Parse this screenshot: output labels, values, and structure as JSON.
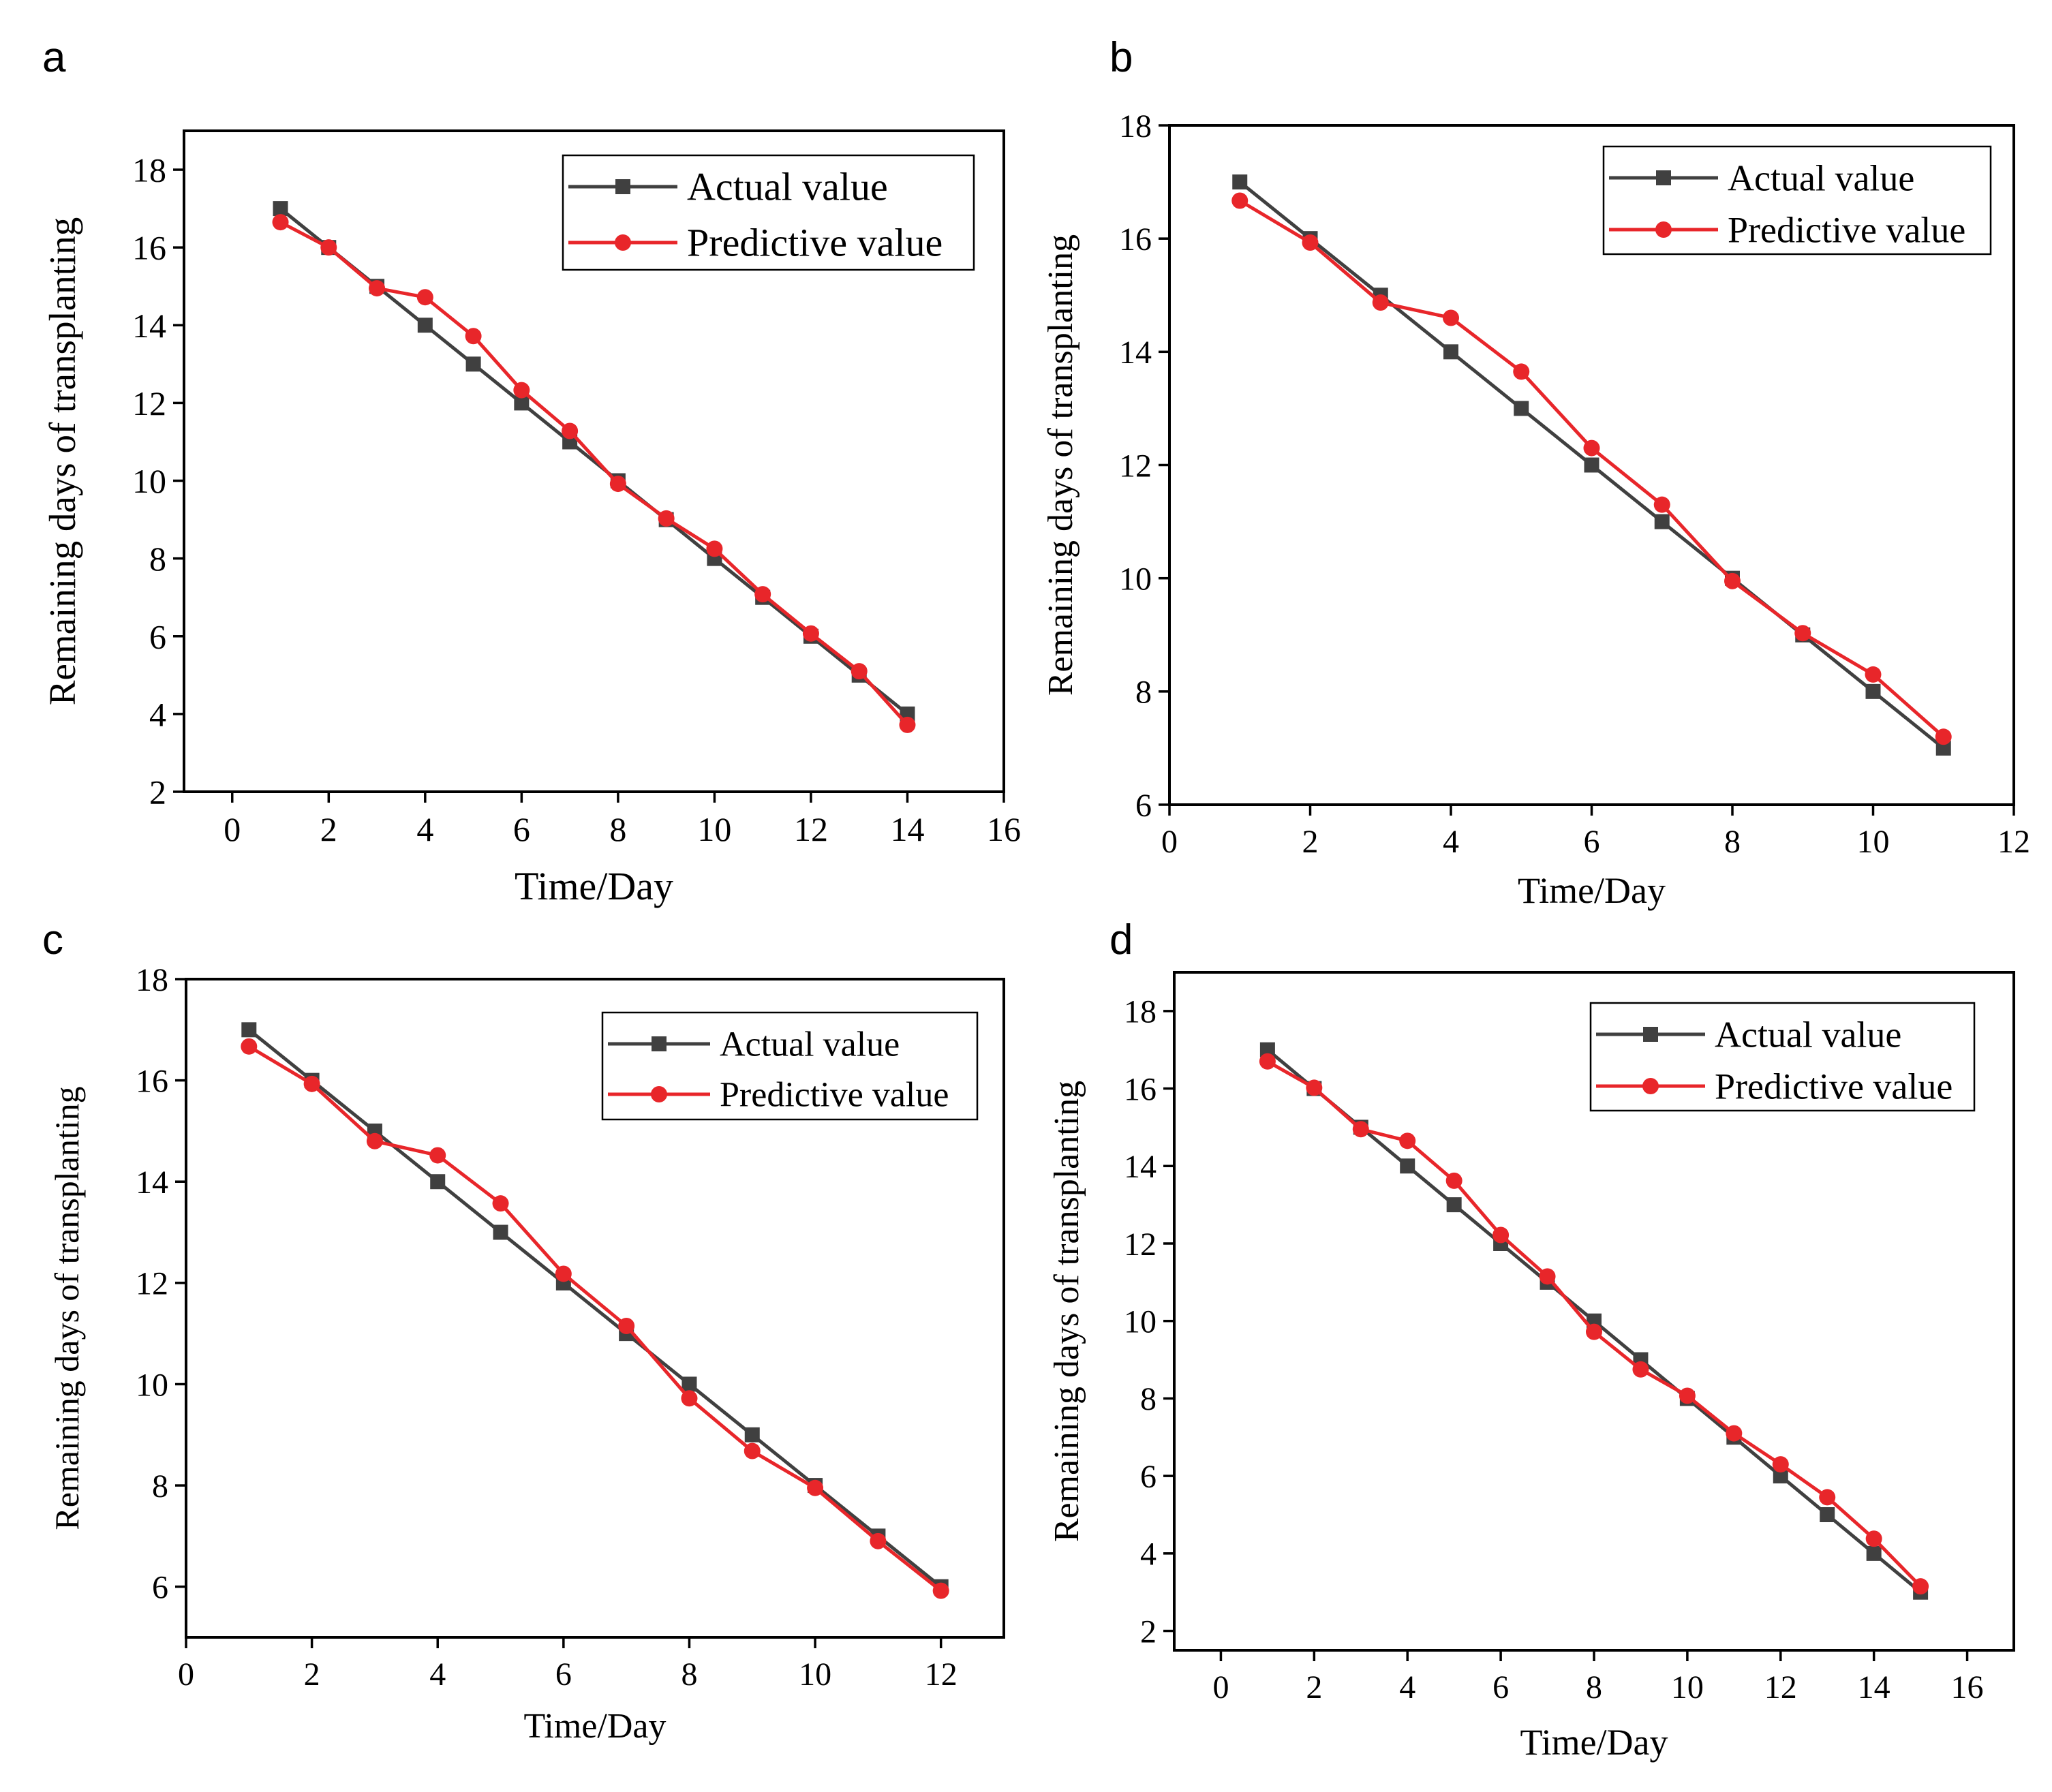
{
  "chart_data": [
    {
      "panel": "a",
      "type": "line",
      "xlabel": "Time/Day",
      "ylabel": "Remaining days of transplanting",
      "xlim": [
        -1,
        16
      ],
      "ylim": [
        2,
        19
      ],
      "xticks": [
        0,
        2,
        4,
        6,
        8,
        10,
        12,
        14,
        16
      ],
      "yticks": [
        2,
        4,
        6,
        8,
        10,
        12,
        14,
        16,
        18
      ],
      "legend_position": "top-right",
      "series": [
        {
          "name": "Actual value",
          "color": "#404040",
          "marker": "square",
          "x": [
            1,
            2,
            3,
            4,
            5,
            6,
            7,
            8,
            9,
            10,
            11,
            12,
            13,
            14
          ],
          "y": [
            17,
            16,
            15,
            14,
            13,
            12,
            11,
            10,
            9,
            8,
            7,
            6,
            5,
            4
          ]
        },
        {
          "name": "Predictive value",
          "color": "#e8262a",
          "marker": "circle",
          "x": [
            1,
            2,
            3,
            4,
            5,
            6,
            7,
            8,
            9,
            10,
            11,
            12,
            13,
            14
          ],
          "y": [
            16.65,
            16.0,
            14.95,
            14.72,
            13.72,
            12.33,
            11.28,
            9.92,
            9.03,
            8.25,
            7.08,
            6.07,
            5.1,
            3.72
          ]
        }
      ]
    },
    {
      "panel": "b",
      "type": "line",
      "xlabel": "Time/Day",
      "ylabel": "Remaining days of transplanting",
      "xlim": [
        0,
        12
      ],
      "ylim": [
        6,
        18
      ],
      "xticks": [
        0,
        2,
        4,
        6,
        8,
        10,
        12
      ],
      "yticks": [
        6,
        8,
        10,
        12,
        14,
        16,
        18
      ],
      "legend_position": "top-right",
      "series": [
        {
          "name": "Actual value",
          "color": "#404040",
          "marker": "square",
          "x": [
            1,
            2,
            3,
            4,
            5,
            6,
            7,
            8,
            9,
            10,
            11
          ],
          "y": [
            17,
            16,
            15,
            14,
            13,
            12,
            11,
            10,
            9,
            8,
            7
          ]
        },
        {
          "name": "Predictive value",
          "color": "#e8262a",
          "marker": "circle",
          "x": [
            1,
            2,
            3,
            4,
            5,
            6,
            7,
            8,
            9,
            10,
            11
          ],
          "y": [
            16.67,
            15.93,
            14.87,
            14.6,
            13.65,
            12.3,
            11.3,
            9.95,
            9.03,
            8.3,
            7.2
          ]
        }
      ]
    },
    {
      "panel": "c",
      "type": "line",
      "xlabel": "Time/Day",
      "ylabel": "Remaining days of transplanting",
      "xlim": [
        0,
        13
      ],
      "ylim": [
        5,
        18
      ],
      "xticks": [
        0,
        2,
        4,
        6,
        8,
        10,
        12
      ],
      "yticks": [
        6,
        8,
        10,
        12,
        14,
        16,
        18
      ],
      "legend_position": "top-right",
      "series": [
        {
          "name": "Actual value",
          "color": "#404040",
          "marker": "square",
          "x": [
            1,
            2,
            3,
            4,
            5,
            6,
            7,
            8,
            9,
            10,
            11,
            12
          ],
          "y": [
            17,
            16,
            15,
            14,
            13,
            12,
            11,
            10,
            9,
            8,
            7,
            6
          ]
        },
        {
          "name": "Predictive value",
          "color": "#e8262a",
          "marker": "circle",
          "x": [
            1,
            2,
            3,
            4,
            5,
            6,
            7,
            8,
            9,
            10,
            11,
            12
          ],
          "y": [
            16.67,
            15.93,
            14.8,
            14.52,
            13.57,
            12.18,
            11.15,
            9.72,
            8.68,
            7.95,
            6.9,
            5.92
          ]
        }
      ]
    },
    {
      "panel": "d",
      "type": "line",
      "xlabel": "Time/Day",
      "ylabel": "Remaining days of transplanting",
      "xlim": [
        -1,
        17
      ],
      "ylim": [
        1.5,
        19
      ],
      "xticks": [
        0,
        2,
        4,
        6,
        8,
        10,
        12,
        14,
        16
      ],
      "yticks": [
        2,
        4,
        6,
        8,
        10,
        12,
        14,
        16,
        18
      ],
      "legend_position": "top-right",
      "series": [
        {
          "name": "Actual value",
          "color": "#404040",
          "marker": "square",
          "x": [
            1,
            2,
            3,
            4,
            5,
            6,
            7,
            8,
            9,
            10,
            11,
            12,
            13,
            14,
            15
          ],
          "y": [
            17,
            16,
            15,
            14,
            13,
            12,
            11,
            10,
            9,
            8,
            7,
            6,
            5,
            4,
            3
          ]
        },
        {
          "name": "Predictive value",
          "color": "#e8262a",
          "marker": "circle",
          "x": [
            1,
            2,
            3,
            4,
            5,
            6,
            7,
            8,
            9,
            10,
            11,
            12,
            13,
            14,
            15
          ],
          "y": [
            16.7,
            16.02,
            14.95,
            14.65,
            13.62,
            12.22,
            11.15,
            9.72,
            8.75,
            8.07,
            7.1,
            6.3,
            5.45,
            4.38,
            3.15
          ]
        }
      ]
    }
  ]
}
